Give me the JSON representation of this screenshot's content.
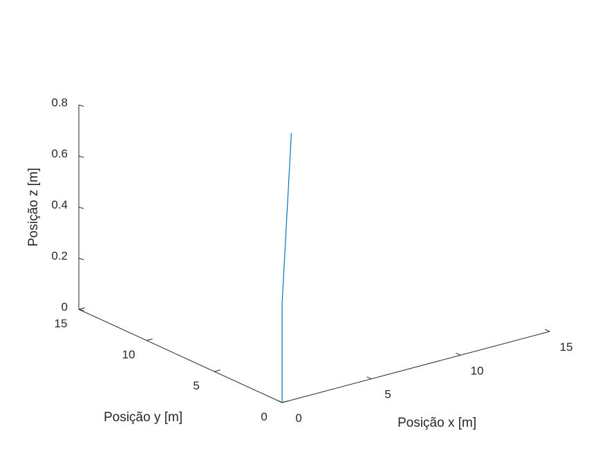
{
  "chart_data": {
    "type": "line",
    "projection": "3d",
    "xlabel": "Posição x [m]",
    "ylabel": "Posição y [m]",
    "zlabel": "Posição z [m]",
    "xlim": [
      0,
      15
    ],
    "ylim": [
      0,
      15
    ],
    "zlim": [
      0,
      0.8
    ],
    "x_ticks": [
      "0",
      "5",
      "10",
      "15"
    ],
    "y_ticks": [
      "0",
      "5",
      "10",
      "15"
    ],
    "z_ticks": [
      "0",
      "0.2",
      "0.4",
      "0.6",
      "0.8"
    ],
    "grid": false,
    "series": [
      {
        "color": "#0072BD",
        "points": [
          {
            "x": 0,
            "y": 0,
            "z": 0
          },
          {
            "x": 0,
            "y": 0,
            "z": 0.375
          },
          {
            "x": 0.05,
            "y": 0.06,
            "z": 0.39
          },
          {
            "x": 2.8,
            "y": 3.0,
            "z": 0.93
          }
        ]
      }
    ]
  }
}
